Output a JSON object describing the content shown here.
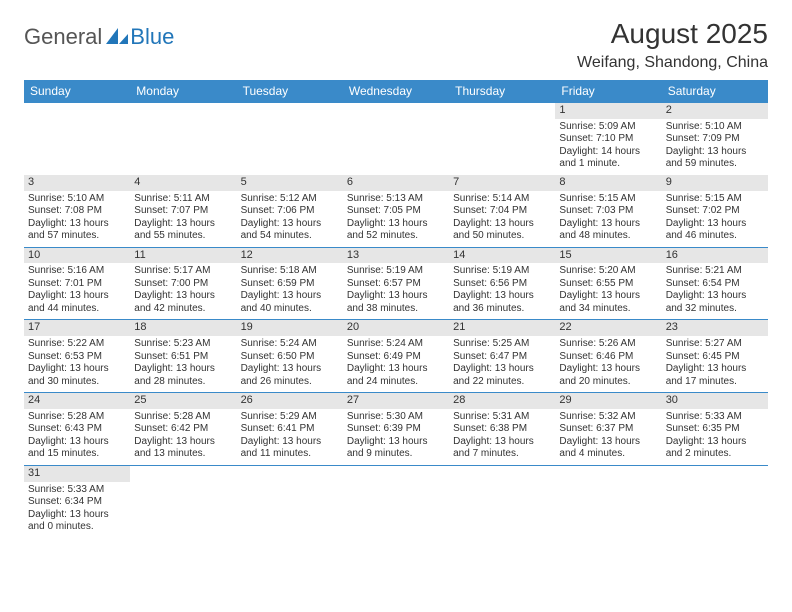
{
  "logo": {
    "part1": "General",
    "part2": "Blue"
  },
  "title": {
    "month": "August 2025",
    "location": "Weifang, Shandong, China"
  },
  "colors": {
    "header_bg": "#3a8ac9",
    "header_text": "#ffffff",
    "daynum_bg": "#e6e6e6",
    "text": "#333333",
    "logo_gray": "#555555",
    "logo_blue": "#2176b9",
    "cell_border": "#3a8ac9"
  },
  "weekdays": [
    "Sunday",
    "Monday",
    "Tuesday",
    "Wednesday",
    "Thursday",
    "Friday",
    "Saturday"
  ],
  "weeks": [
    [
      {
        "day": ""
      },
      {
        "day": ""
      },
      {
        "day": ""
      },
      {
        "day": ""
      },
      {
        "day": ""
      },
      {
        "day": "1",
        "sunrise": "Sunrise: 5:09 AM",
        "sunset": "Sunset: 7:10 PM",
        "daylight": "Daylight: 14 hours and 1 minute."
      },
      {
        "day": "2",
        "sunrise": "Sunrise: 5:10 AM",
        "sunset": "Sunset: 7:09 PM",
        "daylight": "Daylight: 13 hours and 59 minutes."
      }
    ],
    [
      {
        "day": "3",
        "sunrise": "Sunrise: 5:10 AM",
        "sunset": "Sunset: 7:08 PM",
        "daylight": "Daylight: 13 hours and 57 minutes."
      },
      {
        "day": "4",
        "sunrise": "Sunrise: 5:11 AM",
        "sunset": "Sunset: 7:07 PM",
        "daylight": "Daylight: 13 hours and 55 minutes."
      },
      {
        "day": "5",
        "sunrise": "Sunrise: 5:12 AM",
        "sunset": "Sunset: 7:06 PM",
        "daylight": "Daylight: 13 hours and 54 minutes."
      },
      {
        "day": "6",
        "sunrise": "Sunrise: 5:13 AM",
        "sunset": "Sunset: 7:05 PM",
        "daylight": "Daylight: 13 hours and 52 minutes."
      },
      {
        "day": "7",
        "sunrise": "Sunrise: 5:14 AM",
        "sunset": "Sunset: 7:04 PM",
        "daylight": "Daylight: 13 hours and 50 minutes."
      },
      {
        "day": "8",
        "sunrise": "Sunrise: 5:15 AM",
        "sunset": "Sunset: 7:03 PM",
        "daylight": "Daylight: 13 hours and 48 minutes."
      },
      {
        "day": "9",
        "sunrise": "Sunrise: 5:15 AM",
        "sunset": "Sunset: 7:02 PM",
        "daylight": "Daylight: 13 hours and 46 minutes."
      }
    ],
    [
      {
        "day": "10",
        "sunrise": "Sunrise: 5:16 AM",
        "sunset": "Sunset: 7:01 PM",
        "daylight": "Daylight: 13 hours and 44 minutes."
      },
      {
        "day": "11",
        "sunrise": "Sunrise: 5:17 AM",
        "sunset": "Sunset: 7:00 PM",
        "daylight": "Daylight: 13 hours and 42 minutes."
      },
      {
        "day": "12",
        "sunrise": "Sunrise: 5:18 AM",
        "sunset": "Sunset: 6:59 PM",
        "daylight": "Daylight: 13 hours and 40 minutes."
      },
      {
        "day": "13",
        "sunrise": "Sunrise: 5:19 AM",
        "sunset": "Sunset: 6:57 PM",
        "daylight": "Daylight: 13 hours and 38 minutes."
      },
      {
        "day": "14",
        "sunrise": "Sunrise: 5:19 AM",
        "sunset": "Sunset: 6:56 PM",
        "daylight": "Daylight: 13 hours and 36 minutes."
      },
      {
        "day": "15",
        "sunrise": "Sunrise: 5:20 AM",
        "sunset": "Sunset: 6:55 PM",
        "daylight": "Daylight: 13 hours and 34 minutes."
      },
      {
        "day": "16",
        "sunrise": "Sunrise: 5:21 AM",
        "sunset": "Sunset: 6:54 PM",
        "daylight": "Daylight: 13 hours and 32 minutes."
      }
    ],
    [
      {
        "day": "17",
        "sunrise": "Sunrise: 5:22 AM",
        "sunset": "Sunset: 6:53 PM",
        "daylight": "Daylight: 13 hours and 30 minutes."
      },
      {
        "day": "18",
        "sunrise": "Sunrise: 5:23 AM",
        "sunset": "Sunset: 6:51 PM",
        "daylight": "Daylight: 13 hours and 28 minutes."
      },
      {
        "day": "19",
        "sunrise": "Sunrise: 5:24 AM",
        "sunset": "Sunset: 6:50 PM",
        "daylight": "Daylight: 13 hours and 26 minutes."
      },
      {
        "day": "20",
        "sunrise": "Sunrise: 5:24 AM",
        "sunset": "Sunset: 6:49 PM",
        "daylight": "Daylight: 13 hours and 24 minutes."
      },
      {
        "day": "21",
        "sunrise": "Sunrise: 5:25 AM",
        "sunset": "Sunset: 6:47 PM",
        "daylight": "Daylight: 13 hours and 22 minutes."
      },
      {
        "day": "22",
        "sunrise": "Sunrise: 5:26 AM",
        "sunset": "Sunset: 6:46 PM",
        "daylight": "Daylight: 13 hours and 20 minutes."
      },
      {
        "day": "23",
        "sunrise": "Sunrise: 5:27 AM",
        "sunset": "Sunset: 6:45 PM",
        "daylight": "Daylight: 13 hours and 17 minutes."
      }
    ],
    [
      {
        "day": "24",
        "sunrise": "Sunrise: 5:28 AM",
        "sunset": "Sunset: 6:43 PM",
        "daylight": "Daylight: 13 hours and 15 minutes."
      },
      {
        "day": "25",
        "sunrise": "Sunrise: 5:28 AM",
        "sunset": "Sunset: 6:42 PM",
        "daylight": "Daylight: 13 hours and 13 minutes."
      },
      {
        "day": "26",
        "sunrise": "Sunrise: 5:29 AM",
        "sunset": "Sunset: 6:41 PM",
        "daylight": "Daylight: 13 hours and 11 minutes."
      },
      {
        "day": "27",
        "sunrise": "Sunrise: 5:30 AM",
        "sunset": "Sunset: 6:39 PM",
        "daylight": "Daylight: 13 hours and 9 minutes."
      },
      {
        "day": "28",
        "sunrise": "Sunrise: 5:31 AM",
        "sunset": "Sunset: 6:38 PM",
        "daylight": "Daylight: 13 hours and 7 minutes."
      },
      {
        "day": "29",
        "sunrise": "Sunrise: 5:32 AM",
        "sunset": "Sunset: 6:37 PM",
        "daylight": "Daylight: 13 hours and 4 minutes."
      },
      {
        "day": "30",
        "sunrise": "Sunrise: 5:33 AM",
        "sunset": "Sunset: 6:35 PM",
        "daylight": "Daylight: 13 hours and 2 minutes."
      }
    ],
    [
      {
        "day": "31",
        "sunrise": "Sunrise: 5:33 AM",
        "sunset": "Sunset: 6:34 PM",
        "daylight": "Daylight: 13 hours and 0 minutes."
      },
      {
        "day": ""
      },
      {
        "day": ""
      },
      {
        "day": ""
      },
      {
        "day": ""
      },
      {
        "day": ""
      },
      {
        "day": ""
      }
    ]
  ]
}
